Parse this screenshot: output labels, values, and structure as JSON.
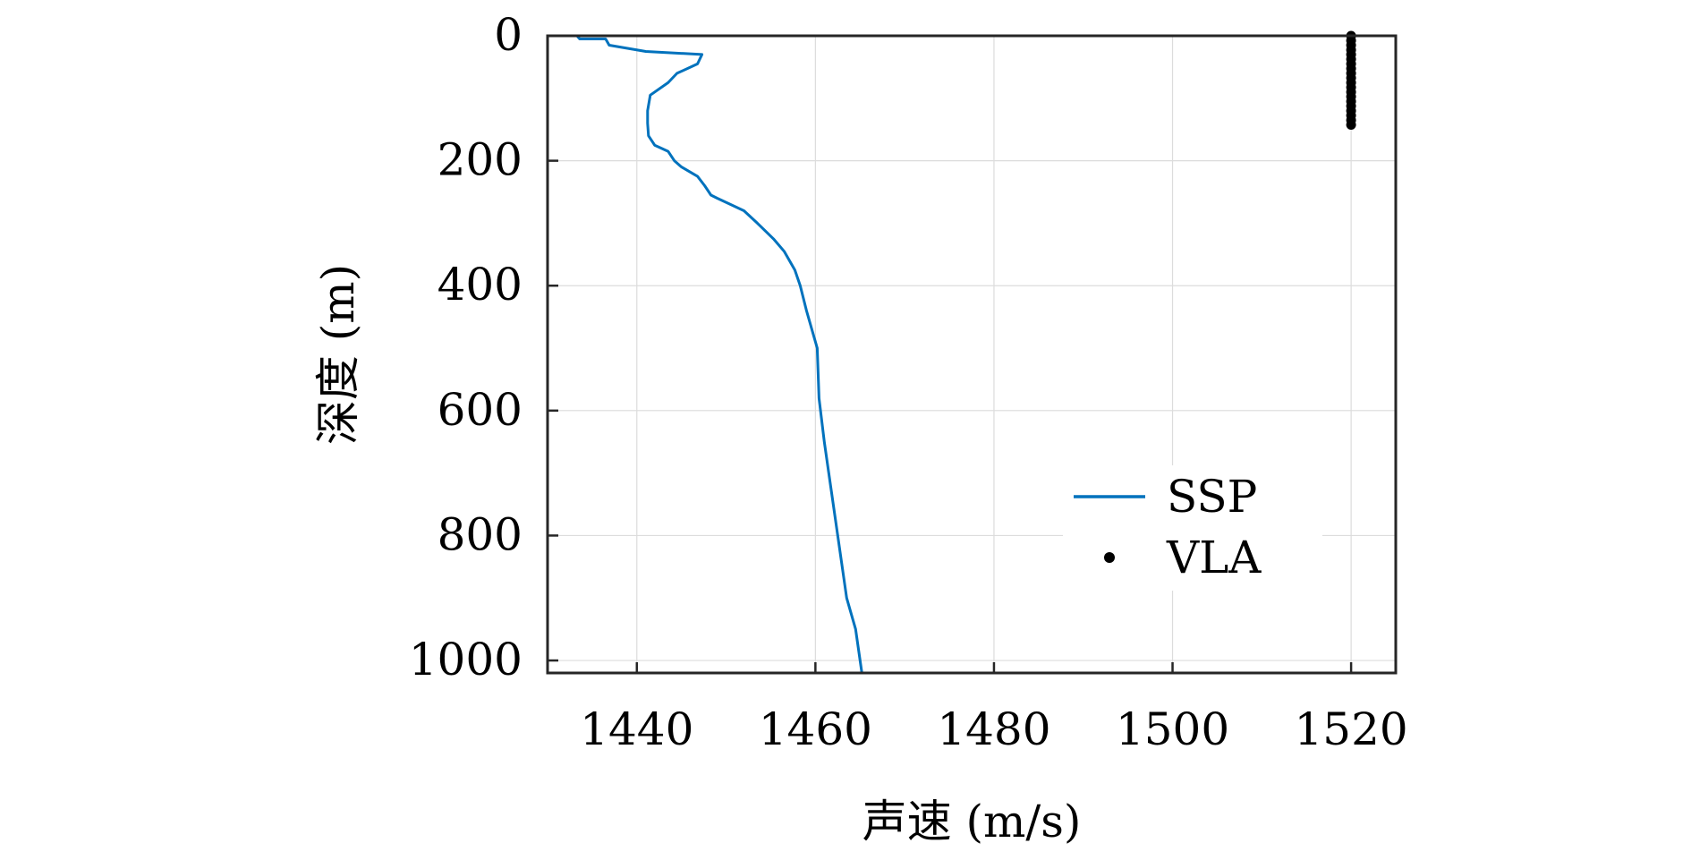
{
  "chart_data": {
    "type": "line",
    "xlabel": "声速 (m/s)",
    "ylabel": "深度 (m)",
    "xlim": [
      1430,
      1525
    ],
    "ylim": [
      0,
      1020
    ],
    "y_reversed": true,
    "xticks": [
      1440,
      1460,
      1480,
      1500,
      1520
    ],
    "yticks": [
      0,
      200,
      400,
      600,
      800,
      1000
    ],
    "grid": true,
    "legend_position": "bottom-right",
    "series": [
      {
        "name": "SSP",
        "kind": "line",
        "color": "#0072BD",
        "x": [
          1433.3,
          1433.6,
          1436.5,
          1436.9,
          1441,
          1447.3,
          1446.8,
          1444.5,
          1443.5,
          1441.5,
          1441.2,
          1441.2,
          1441.3,
          1442,
          1443.5,
          1444.2,
          1445,
          1446.8,
          1447.6,
          1448.3,
          1449,
          1450.5,
          1452,
          1453.5,
          1455.3,
          1456.5,
          1457.7,
          1458.3,
          1459,
          1459.8,
          1460.2,
          1460.4,
          1461,
          1461.5,
          1462.5,
          1463.5,
          1464.5,
          1465.2
        ],
        "y": [
          0,
          5,
          5,
          15,
          25,
          30,
          45,
          60,
          75,
          95,
          120,
          140,
          160,
          175,
          185,
          200,
          210,
          225,
          240,
          255,
          260,
          270,
          280,
          300,
          325,
          345,
          375,
          400,
          440,
          480,
          500,
          580,
          650,
          700,
          800,
          900,
          950,
          1020
        ]
      },
      {
        "name": "VLA",
        "kind": "scatter",
        "color": "#000000",
        "x": [
          1520,
          1520,
          1520,
          1520,
          1520,
          1520,
          1520,
          1520,
          1520,
          1520,
          1520,
          1520,
          1520,
          1520,
          1520,
          1520,
          1520,
          1520,
          1520,
          1520
        ],
        "y": [
          0,
          7.5,
          15,
          22.5,
          30,
          37.5,
          45,
          52.5,
          60,
          67.5,
          75,
          82.5,
          90,
          97.5,
          105,
          112.5,
          120,
          127.5,
          135,
          142.5
        ]
      }
    ]
  }
}
